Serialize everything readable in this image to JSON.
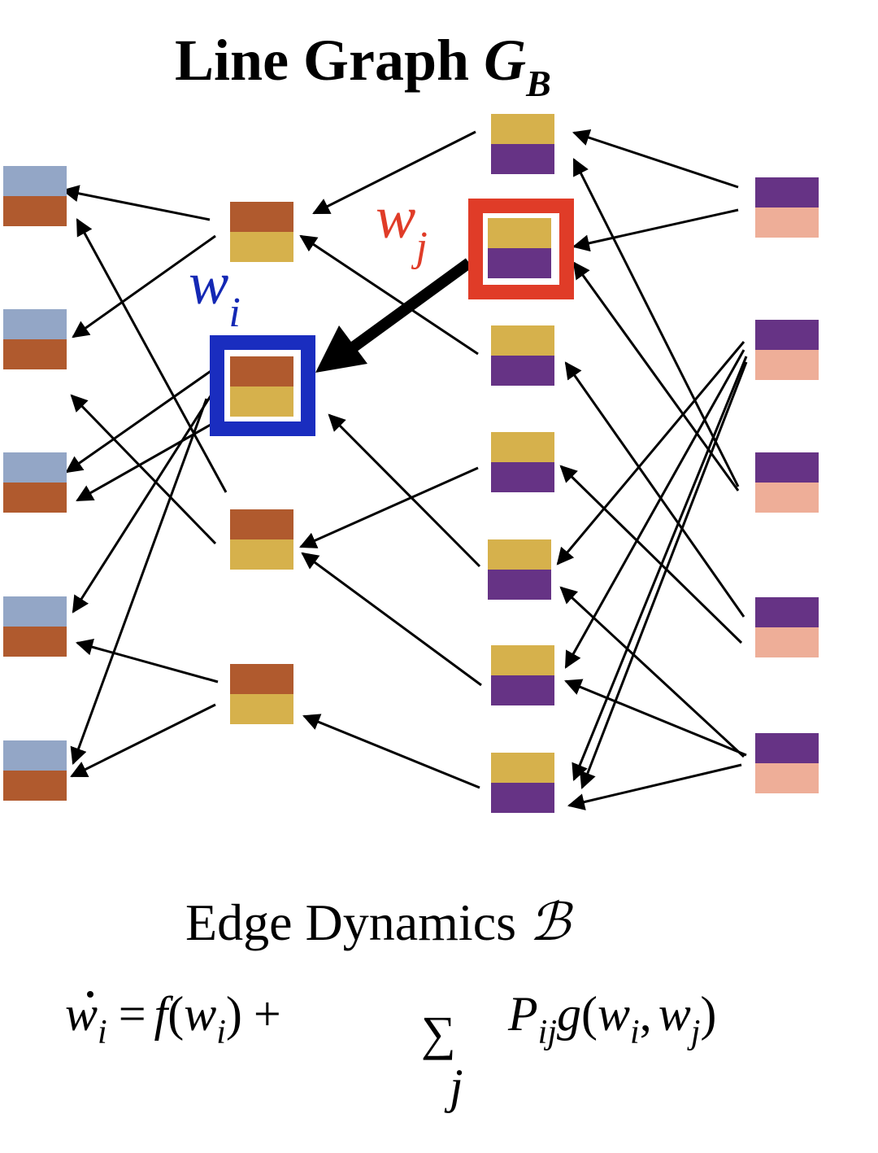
{
  "title": {
    "main": "Line Graph ",
    "symbol": "G",
    "subscript": "B"
  },
  "highlight_labels": {
    "wi": {
      "base": "w",
      "subscript": "i",
      "color": "#1428b4"
    },
    "wj": {
      "base": "w",
      "subscript": "j",
      "color": "#e03c28"
    }
  },
  "colors": {
    "blue_grey": "#93a6c6",
    "rust": "#b05a2e",
    "mustard": "#d6b14c",
    "purple": "#663385",
    "peach": "#eeae98",
    "arrow": "#000000",
    "wi_frame": "#1a2dbf",
    "wj_frame": "#e03c28"
  },
  "node_columns": [
    {
      "name": "column-1",
      "top_color": "blue_grey",
      "bottom_color": "rust",
      "count": 5
    },
    {
      "name": "column-2",
      "top_color": "rust",
      "bottom_color": "mustard",
      "count": 4
    },
    {
      "name": "column-3",
      "top_color": "mustard",
      "bottom_color": "purple",
      "count": 7
    },
    {
      "name": "column-4",
      "top_color": "purple",
      "bottom_color": "peach",
      "count": 5
    }
  ],
  "caption": {
    "text": "Edge Dynamics ",
    "symbol": "ℬ"
  },
  "equation": {
    "lhs_base": "w",
    "lhs_sub": "i",
    "equals": "=",
    "f": "f",
    "open": "(",
    "w1": "w",
    "w1_sub": "i",
    "close": ")",
    "plus": "+",
    "sum": "∑",
    "sum_index": "j",
    "P": "P",
    "P_sub": "ij",
    "g": "g",
    "g_open": "(",
    "w2": "w",
    "w2_sub": "i",
    "comma": ",",
    "w3": "w",
    "w3_sub": "j",
    "g_close": ")"
  }
}
